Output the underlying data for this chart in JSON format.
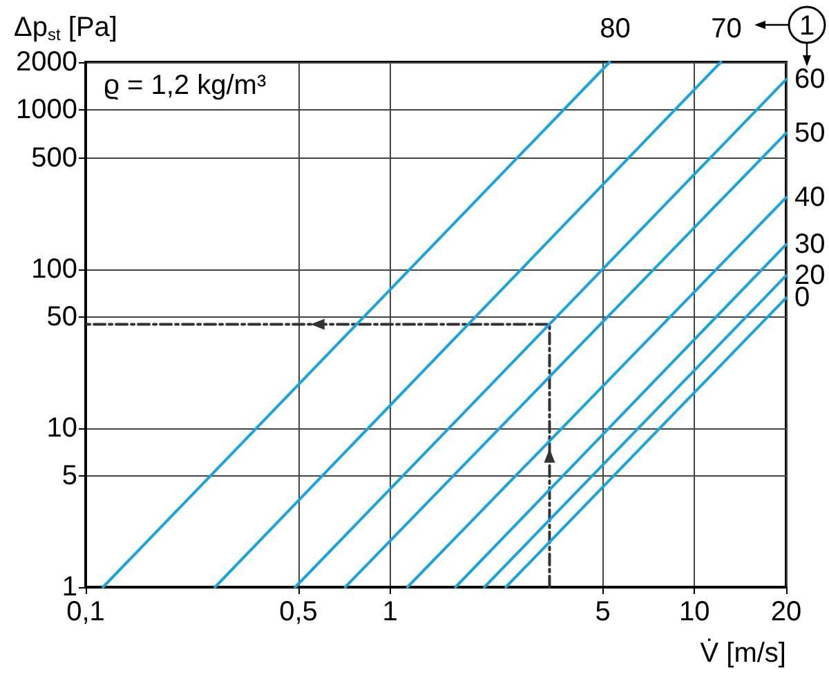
{
  "chart_data": {
    "type": "line",
    "ylabel": "Δp$_{st}$ [Pa]",
    "xlabel": "V̇ [m/s]",
    "annotations": [
      "ϱ = 1,2 kg/m³",
      "1"
    ],
    "log": "xy",
    "grid": true,
    "legend": false,
    "marker": "none",
    "line_style": "solid",
    "xlim": [
      0.1,
      20
    ],
    "ylim": [
      1,
      2000
    ],
    "xticks": [
      {
        "value": 0.1,
        "label": "0,1"
      },
      {
        "value": 0.5,
        "label": "0,5"
      },
      1,
      5,
      10,
      20
    ],
    "yticks": [
      1,
      5,
      10,
      50,
      100,
      500,
      1000,
      2000
    ],
    "series": [
      {
        "name": "80",
        "color": "#1aa3de",
        "x": [
          0.114,
          5.26
        ],
        "values": [
          1,
          2000
        ]
      },
      {
        "name": "70",
        "color": "#1aa3de",
        "x": [
          0.266,
          12.2
        ],
        "values": [
          1,
          2000
        ]
      },
      {
        "name": "60",
        "color": "#1aa3de",
        "x": [
          0.488,
          20
        ],
        "values": [
          1,
          1560
        ]
      },
      {
        "name": "50",
        "color": "#1aa3de",
        "x": [
          0.712,
          20
        ],
        "values": [
          1,
          717
        ]
      },
      {
        "name": "40",
        "color": "#1aa3de",
        "x": [
          1.14,
          20
        ],
        "values": [
          1,
          282
        ]
      },
      {
        "name": "30",
        "color": "#1aa3de",
        "x": [
          1.64,
          20
        ],
        "values": [
          1,
          143
        ]
      },
      {
        "name": "20",
        "color": "#1aa3de",
        "x": [
          2.04,
          20
        ],
        "values": [
          1,
          91
        ]
      },
      {
        "name": "0",
        "color": "#1aa3de",
        "x": [
          2.4,
          20
        ],
        "values": [
          1,
          66
        ]
      },
      {
        "color": "#333333",
        "line_style": "dashed",
        "x": [
          3.34,
          3.34,
          0.1
        ],
        "values": [
          1,
          45,
          45
        ]
      }
    ]
  }
}
